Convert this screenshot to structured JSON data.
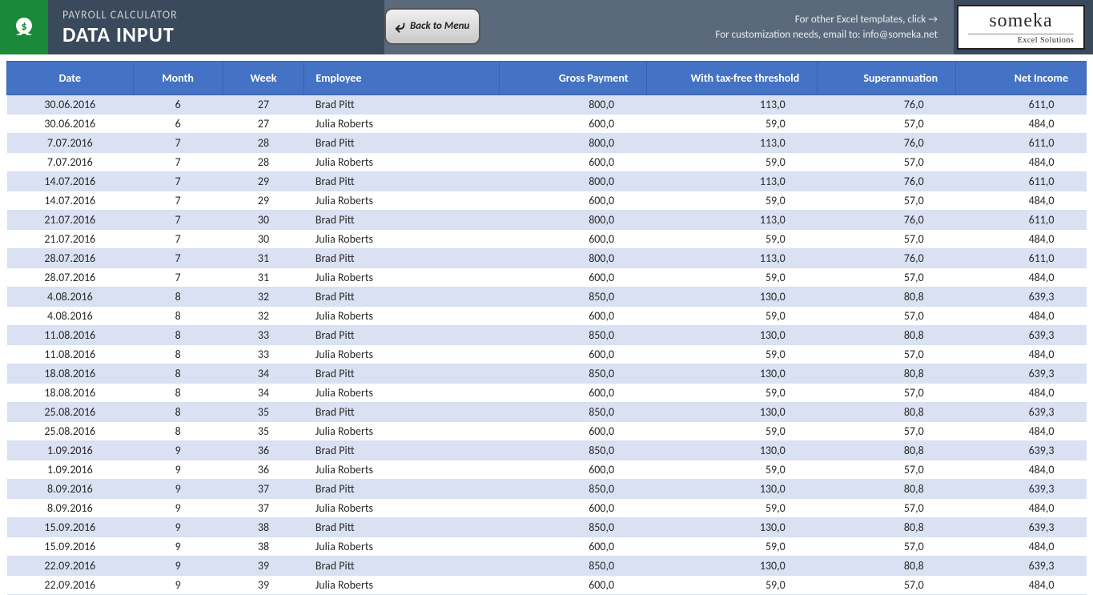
{
  "header": {
    "title_small": "PAYROLL CALCULATOR",
    "title_big": "DATA INPUT",
    "back_button": "Back to Menu",
    "info_line1": "For other Excel templates, click →",
    "info_line2": "For customization needs, email to: info@someka.net",
    "logo_main": "someka",
    "logo_sub": "Excel Solutions"
  },
  "colors": {
    "header_bg": "#3a4a5c",
    "info_bg": "#5a6a7c",
    "logo_green": "#1a8a3a",
    "table_header": "#4472c4",
    "row_even": "#d9e1f2",
    "row_odd": "#ffffff"
  },
  "table": {
    "columns": [
      {
        "key": "date",
        "label": "Date",
        "align": "center"
      },
      {
        "key": "month",
        "label": "Month",
        "align": "center"
      },
      {
        "key": "week",
        "label": "Week",
        "align": "center"
      },
      {
        "key": "employee",
        "label": "Employee",
        "align": "left"
      },
      {
        "key": "gross",
        "label": "Gross Payment",
        "align": "right"
      },
      {
        "key": "tax",
        "label": "With tax-free threshold",
        "align": "right"
      },
      {
        "key": "super",
        "label": "Superannuation",
        "align": "right"
      },
      {
        "key": "net",
        "label": "Net Income",
        "align": "right"
      }
    ],
    "rows": [
      [
        "30.06.2016",
        "6",
        "27",
        "Brad Pitt",
        "800,0",
        "113,0",
        "76,0",
        "611,0"
      ],
      [
        "30.06.2016",
        "6",
        "27",
        "Julia Roberts",
        "600,0",
        "59,0",
        "57,0",
        "484,0"
      ],
      [
        "7.07.2016",
        "7",
        "28",
        "Brad Pitt",
        "800,0",
        "113,0",
        "76,0",
        "611,0"
      ],
      [
        "7.07.2016",
        "7",
        "28",
        "Julia Roberts",
        "600,0",
        "59,0",
        "57,0",
        "484,0"
      ],
      [
        "14.07.2016",
        "7",
        "29",
        "Brad Pitt",
        "800,0",
        "113,0",
        "76,0",
        "611,0"
      ],
      [
        "14.07.2016",
        "7",
        "29",
        "Julia Roberts",
        "600,0",
        "59,0",
        "57,0",
        "484,0"
      ],
      [
        "21.07.2016",
        "7",
        "30",
        "Brad Pitt",
        "800,0",
        "113,0",
        "76,0",
        "611,0"
      ],
      [
        "21.07.2016",
        "7",
        "30",
        "Julia Roberts",
        "600,0",
        "59,0",
        "57,0",
        "484,0"
      ],
      [
        "28.07.2016",
        "7",
        "31",
        "Brad Pitt",
        "800,0",
        "113,0",
        "76,0",
        "611,0"
      ],
      [
        "28.07.2016",
        "7",
        "31",
        "Julia Roberts",
        "600,0",
        "59,0",
        "57,0",
        "484,0"
      ],
      [
        "4.08.2016",
        "8",
        "32",
        "Brad Pitt",
        "850,0",
        "130,0",
        "80,8",
        "639,3"
      ],
      [
        "4.08.2016",
        "8",
        "32",
        "Julia Roberts",
        "600,0",
        "59,0",
        "57,0",
        "484,0"
      ],
      [
        "11.08.2016",
        "8",
        "33",
        "Brad Pitt",
        "850,0",
        "130,0",
        "80,8",
        "639,3"
      ],
      [
        "11.08.2016",
        "8",
        "33",
        "Julia Roberts",
        "600,0",
        "59,0",
        "57,0",
        "484,0"
      ],
      [
        "18.08.2016",
        "8",
        "34",
        "Brad Pitt",
        "850,0",
        "130,0",
        "80,8",
        "639,3"
      ],
      [
        "18.08.2016",
        "8",
        "34",
        "Julia Roberts",
        "600,0",
        "59,0",
        "57,0",
        "484,0"
      ],
      [
        "25.08.2016",
        "8",
        "35",
        "Brad Pitt",
        "850,0",
        "130,0",
        "80,8",
        "639,3"
      ],
      [
        "25.08.2016",
        "8",
        "35",
        "Julia Roberts",
        "600,0",
        "59,0",
        "57,0",
        "484,0"
      ],
      [
        "1.09.2016",
        "9",
        "36",
        "Brad Pitt",
        "850,0",
        "130,0",
        "80,8",
        "639,3"
      ],
      [
        "1.09.2016",
        "9",
        "36",
        "Julia Roberts",
        "600,0",
        "59,0",
        "57,0",
        "484,0"
      ],
      [
        "8.09.2016",
        "9",
        "37",
        "Brad Pitt",
        "850,0",
        "130,0",
        "80,8",
        "639,3"
      ],
      [
        "8.09.2016",
        "9",
        "37",
        "Julia Roberts",
        "600,0",
        "59,0",
        "57,0",
        "484,0"
      ],
      [
        "15.09.2016",
        "9",
        "38",
        "Brad Pitt",
        "850,0",
        "130,0",
        "80,8",
        "639,3"
      ],
      [
        "15.09.2016",
        "9",
        "38",
        "Julia Roberts",
        "600,0",
        "59,0",
        "57,0",
        "484,0"
      ],
      [
        "22.09.2016",
        "9",
        "39",
        "Brad Pitt",
        "850,0",
        "130,0",
        "80,8",
        "639,3"
      ],
      [
        "22.09.2016",
        "9",
        "39",
        "Julia Roberts",
        "600,0",
        "59,0",
        "57,0",
        "484,0"
      ]
    ]
  }
}
